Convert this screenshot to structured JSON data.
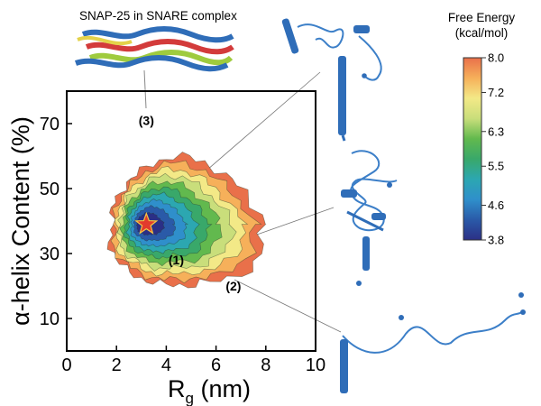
{
  "chart_data": {
    "type": "heatmap",
    "title": "",
    "xlabel": {
      "main": "R",
      "sub": "g",
      "unit": " (nm)"
    },
    "ylabel": "α-helix Content (%)",
    "xlim": [
      0,
      10
    ],
    "ylim": [
      0,
      80
    ],
    "xticks": [
      0,
      2,
      4,
      6,
      8,
      10
    ],
    "yticks": [
      10,
      30,
      50,
      70
    ],
    "colorbar": {
      "title_line1": "Free Energy",
      "title_line2": "(kcal/mol)",
      "ticks": [
        8.0,
        7.2,
        6.3,
        5.5,
        4.6,
        3.8
      ],
      "tick_labels": [
        "8.0",
        "7.2",
        "6.3",
        "5.5",
        "4.6",
        "3.8"
      ],
      "colors": [
        "#e9704a",
        "#f6b05a",
        "#f3e987",
        "#c9de7b",
        "#62b94e",
        "#39a86a",
        "#2ca7b1",
        "#2f8fcb",
        "#2a5aa8",
        "#2b2f86"
      ]
    },
    "free_energy_minimum": {
      "rg": 3.2,
      "helix": 39
    },
    "landscape_center": {
      "rg": 4.0,
      "helix": 39
    },
    "annotations": [
      {
        "label": "(1)",
        "rg": 4.4,
        "helix": 28
      },
      {
        "label": "(2)",
        "rg": 6.7,
        "helix": 20
      },
      {
        "label": "(3)",
        "rg": 3.2,
        "helix": 71
      }
    ],
    "inset_title": "SNAP-25 in SNARE complex"
  }
}
